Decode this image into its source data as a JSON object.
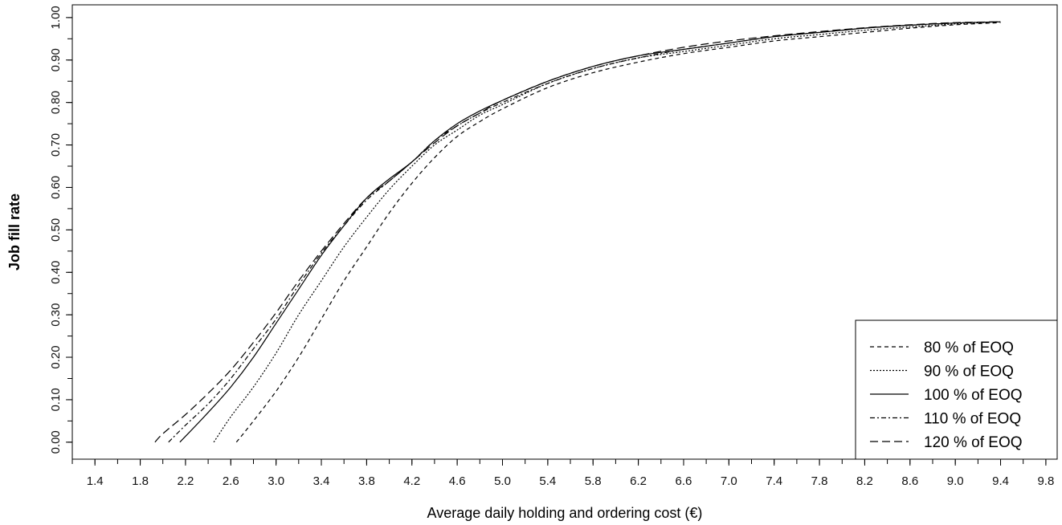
{
  "chart_data": {
    "type": "line",
    "title": "",
    "xlabel": "Average daily holding and ordering cost (€)",
    "ylabel": "Job fill rate",
    "xlim": [
      1.2,
      9.9
    ],
    "ylim": [
      -0.04,
      1.03
    ],
    "x_ticks": [
      "1.4",
      "1.8",
      "2.2",
      "2.6",
      "3.0",
      "3.4",
      "3.8",
      "4.2",
      "4.6",
      "5.0",
      "5.4",
      "5.8",
      "6.2",
      "6.6",
      "7.0",
      "7.4",
      "7.8",
      "8.2",
      "8.6",
      "9.0",
      "9.4",
      "9.8"
    ],
    "y_ticks": [
      "0.00",
      "0.10",
      "0.20",
      "0.30",
      "0.40",
      "0.50",
      "0.60",
      "0.70",
      "0.80",
      "0.90",
      "1.00"
    ],
    "grid": false,
    "legend_position": "bottom-right",
    "series": [
      {
        "name": "80 % of EOQ",
        "dash": "5,4",
        "x": [
          2.65,
          2.8,
          3.0,
          3.2,
          3.4,
          3.6,
          3.8,
          4.0,
          4.2,
          4.4,
          4.6,
          4.8,
          5.0,
          5.4,
          5.8,
          6.2,
          6.6,
          7.0,
          7.4,
          7.8,
          8.2,
          8.6,
          9.0,
          9.4
        ],
        "y": [
          0.0,
          0.05,
          0.12,
          0.2,
          0.29,
          0.38,
          0.46,
          0.54,
          0.61,
          0.67,
          0.72,
          0.755,
          0.785,
          0.835,
          0.87,
          0.895,
          0.915,
          0.93,
          0.945,
          0.955,
          0.965,
          0.975,
          0.983,
          0.988
        ]
      },
      {
        "name": "90 % of EOQ",
        "dash": "2,2",
        "x": [
          2.45,
          2.6,
          2.8,
          3.0,
          3.2,
          3.4,
          3.6,
          3.8,
          4.0,
          4.2,
          4.4,
          4.6,
          4.8,
          5.0,
          5.4,
          5.8,
          6.2,
          6.6,
          7.0,
          7.4,
          7.8,
          8.2,
          8.6,
          9.0,
          9.4
        ],
        "y": [
          0.0,
          0.06,
          0.13,
          0.21,
          0.3,
          0.38,
          0.46,
          0.53,
          0.595,
          0.65,
          0.7,
          0.735,
          0.77,
          0.795,
          0.845,
          0.88,
          0.905,
          0.92,
          0.935,
          0.95,
          0.96,
          0.97,
          0.978,
          0.985,
          0.99
        ]
      },
      {
        "name": "100 % of EOQ",
        "dash": "",
        "x": [
          2.15,
          2.4,
          2.6,
          2.8,
          3.0,
          3.2,
          3.4,
          3.6,
          3.8,
          4.0,
          4.2,
          4.4,
          4.6,
          4.8,
          5.0,
          5.4,
          5.8,
          6.2,
          6.6,
          7.0,
          7.4,
          7.8,
          8.2,
          8.6,
          9.0,
          9.4
        ],
        "y": [
          0.0,
          0.07,
          0.13,
          0.2,
          0.28,
          0.36,
          0.44,
          0.51,
          0.575,
          0.62,
          0.66,
          0.71,
          0.75,
          0.78,
          0.805,
          0.85,
          0.885,
          0.91,
          0.925,
          0.94,
          0.955,
          0.965,
          0.975,
          0.982,
          0.987,
          0.99
        ]
      },
      {
        "name": "110 % of EOQ",
        "dash": "6,3,2,3",
        "x": [
          2.05,
          2.2,
          2.4,
          2.6,
          2.8,
          3.0,
          3.2,
          3.4,
          3.6,
          3.8,
          4.0,
          4.2,
          4.4,
          4.6,
          4.8,
          5.0,
          5.4,
          5.8,
          6.2,
          6.6,
          7.0,
          7.4,
          7.8,
          8.2,
          8.6,
          9.0,
          9.4
        ],
        "y": [
          0.0,
          0.04,
          0.09,
          0.15,
          0.22,
          0.29,
          0.37,
          0.445,
          0.51,
          0.57,
          0.615,
          0.66,
          0.71,
          0.745,
          0.775,
          0.8,
          0.845,
          0.88,
          0.905,
          0.925,
          0.94,
          0.955,
          0.965,
          0.975,
          0.982,
          0.987,
          0.99
        ]
      },
      {
        "name": "120 % of EOQ",
        "dash": "10,5",
        "x": [
          1.93,
          2.0,
          2.2,
          2.4,
          2.6,
          2.8,
          3.0,
          3.2,
          3.4,
          3.6,
          3.8,
          4.0,
          4.2,
          4.4,
          4.6,
          4.8,
          5.0,
          5.4,
          5.8,
          6.2,
          6.6,
          7.0,
          7.4,
          7.8,
          8.2,
          8.6,
          9.0,
          9.4
        ],
        "y": [
          0.0,
          0.02,
          0.065,
          0.115,
          0.17,
          0.235,
          0.305,
          0.38,
          0.45,
          0.515,
          0.575,
          0.615,
          0.66,
          0.705,
          0.745,
          0.775,
          0.805,
          0.85,
          0.885,
          0.91,
          0.93,
          0.945,
          0.957,
          0.967,
          0.976,
          0.983,
          0.988,
          0.99
        ]
      }
    ]
  }
}
